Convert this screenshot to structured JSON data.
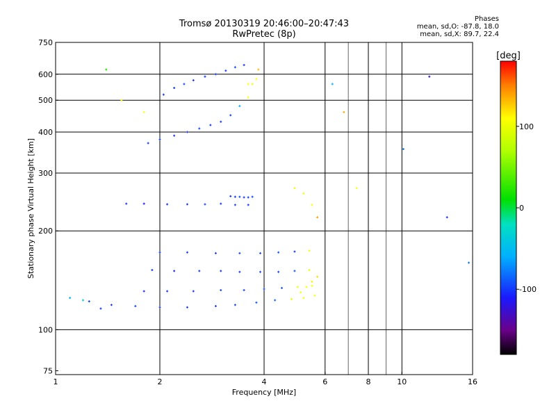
{
  "header": {
    "title_line1": "Tromsø 20130319 20:46:00–20:47:43",
    "title_line2": "RwPretec (8p)"
  },
  "phase_box": {
    "heading": "Phases",
    "line_o": "mean, sd,O: -87.8, 18.0",
    "line_x": "mean, sd,X:  89.7, 22.4"
  },
  "chart_data": {
    "type": "scatter",
    "xlabel": "Frequency [MHz]",
    "ylabel": "Stationary phase Virtual Height [km]",
    "x_scale": "log",
    "y_scale": "log",
    "xlim": [
      1,
      16
    ],
    "ylim": [
      73,
      750
    ],
    "xticks": [
      {
        "value": 1,
        "label": "1"
      },
      {
        "value": 2,
        "label": "2"
      },
      {
        "value": 4,
        "label": "4"
      },
      {
        "value": 6,
        "label": "6"
      },
      {
        "value": 8,
        "label": "8"
      },
      {
        "value": 10,
        "label": "10"
      },
      {
        "value": 16,
        "label": "16"
      }
    ],
    "x_gridlines": [
      2,
      4,
      6,
      8,
      10
    ],
    "x_minor_gridlines": [
      7,
      9
    ],
    "yticks": [
      {
        "value": 75,
        "label": "75"
      },
      {
        "value": 100,
        "label": "100"
      },
      {
        "value": 200,
        "label": "200"
      },
      {
        "value": 300,
        "label": "300"
      },
      {
        "value": 400,
        "label": "400"
      },
      {
        "value": 500,
        "label": "500"
      },
      {
        "value": 600,
        "label": "600"
      },
      {
        "value": 750,
        "label": "750"
      }
    ],
    "y_gridlines": [
      100,
      200,
      300,
      400,
      500,
      600
    ],
    "grid": true,
    "colorbar": {
      "label": "[deg]",
      "range": [
        -180,
        180
      ],
      "ticks": [
        {
          "value": 100,
          "label": "100"
        },
        {
          "value": 0,
          "label": "0"
        },
        {
          "value": -100,
          "label": "-100"
        }
      ],
      "colormap": [
        {
          "value": -180,
          "color": "#000000"
        },
        {
          "value": -150,
          "color": "#6a008a"
        },
        {
          "value": -110,
          "color": "#1a1aff"
        },
        {
          "value": -60,
          "color": "#00b0ff"
        },
        {
          "value": -20,
          "color": "#00e0c0"
        },
        {
          "value": 10,
          "color": "#00e000"
        },
        {
          "value": 70,
          "color": "#b0ff00"
        },
        {
          "value": 110,
          "color": "#ffff00"
        },
        {
          "value": 150,
          "color": "#ff8000"
        },
        {
          "value": 180,
          "color": "#ff0000"
        }
      ]
    },
    "series": [
      {
        "x": [
          1.25,
          1.45,
          1.7,
          2.0,
          2.4,
          2.9,
          3.3,
          3.8,
          4.3,
          4.8,
          5.2,
          5.6
        ],
        "y": [
          122,
          119,
          118,
          117,
          117,
          118,
          119,
          121,
          123,
          124,
          125,
          127
        ],
        "phase": [
          -100,
          -100,
          -95,
          -95,
          -100,
          -100,
          -95,
          -90,
          -85,
          100,
          110,
          110
        ]
      },
      {
        "x": [
          1.8,
          2.1,
          2.5,
          3.0,
          3.5,
          4.0,
          4.5,
          5.0,
          5.5
        ],
        "y": [
          131,
          131,
          131,
          132,
          132,
          133,
          134,
          135,
          136
        ],
        "phase": [
          -105,
          -100,
          -100,
          -95,
          -95,
          -90,
          -90,
          105,
          110
        ]
      },
      {
        "x": [
          1.9,
          2.2,
          2.6,
          3.0,
          3.4,
          3.9,
          4.4,
          4.9,
          5.4
        ],
        "y": [
          152,
          151,
          151,
          151,
          150,
          150,
          150,
          151,
          152
        ],
        "phase": [
          -100,
          -105,
          -100,
          -100,
          -100,
          -95,
          -95,
          -90,
          100
        ]
      },
      {
        "x": [
          2.0,
          2.4,
          2.9,
          3.4,
          3.9,
          4.4,
          4.9,
          5.4
        ],
        "y": [
          172,
          172,
          171,
          171,
          171,
          172,
          173,
          174
        ],
        "phase": [
          -95,
          -100,
          -100,
          -95,
          -95,
          -90,
          -100,
          100
        ]
      },
      {
        "x": [
          1.6,
          1.8,
          2.1,
          2.4,
          2.7,
          3.0,
          3.3,
          3.6
        ],
        "y": [
          242,
          242,
          241,
          241,
          241,
          242,
          240,
          240
        ],
        "phase": [
          -100,
          -110,
          -100,
          -100,
          -95,
          -100,
          -95,
          -100
        ]
      },
      {
        "x": [
          3.2,
          3.3,
          3.4,
          3.5,
          3.6,
          3.7
        ],
        "y": [
          255,
          254,
          254,
          253,
          253,
          254
        ],
        "phase": [
          -100,
          -100,
          -95,
          -100,
          -100,
          -95
        ]
      },
      {
        "x": [
          1.85,
          2.0,
          2.2,
          2.4,
          2.6,
          2.8,
          3.0,
          3.2,
          3.4,
          3.6
        ],
        "y": [
          370,
          380,
          390,
          400,
          410,
          420,
          430,
          450,
          480,
          510
        ],
        "phase": [
          -100,
          -95,
          -100,
          -100,
          -95,
          -100,
          -100,
          -95,
          -60,
          110
        ]
      },
      {
        "x": [
          2.05,
          2.2,
          2.35,
          2.5,
          2.7,
          2.9,
          3.1,
          3.3,
          3.5
        ],
        "y": [
          520,
          545,
          560,
          575,
          590,
          600,
          615,
          630,
          640
        ],
        "phase": [
          -100,
          -100,
          -95,
          -100,
          -100,
          -95,
          -100,
          -95,
          -100
        ]
      },
      {
        "x": [
          3.6,
          3.7,
          3.8,
          3.85
        ],
        "y": [
          560,
          560,
          580,
          620
        ],
        "phase": [
          110,
          100,
          110,
          130
        ]
      },
      {
        "x": [
          4.9,
          5.2,
          5.5,
          5.7
        ],
        "y": [
          270,
          260,
          240,
          220
        ],
        "phase": [
          100,
          105,
          110,
          140
        ]
      },
      {
        "x": [
          5.1,
          5.3,
          5.5,
          5.7
        ],
        "y": [
          130,
          135,
          140,
          145
        ],
        "phase": [
          110,
          110,
          115,
          120
        ]
      },
      {
        "x": [
          1.1,
          1.2,
          1.35,
          1.4,
          1.55,
          1.8,
          6.3,
          6.8,
          7.4,
          10.1,
          12.0,
          13.5,
          15.6
        ],
        "y": [
          125,
          123,
          116,
          620,
          500,
          460,
          560,
          460,
          270,
          355,
          590,
          220,
          160
        ],
        "phase": [
          -60,
          -40,
          -100,
          20,
          110,
          110,
          -60,
          140,
          110,
          -80,
          -120,
          -100,
          -80
        ]
      }
    ]
  }
}
